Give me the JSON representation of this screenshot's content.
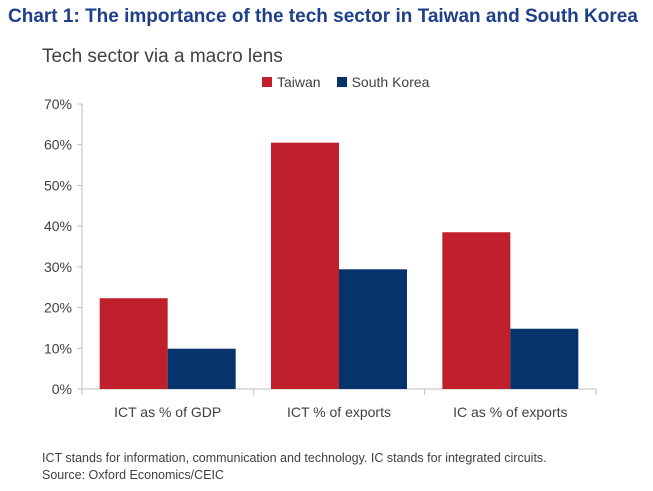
{
  "heading": "Chart 1: The importance of the tech sector in Taiwan and South Korea",
  "footnote": "ICT stands for information, communication and technology. IC stands for integrated circuits.",
  "source": "Source: Oxford Economics/CEIC",
  "colors": {
    "taiwan": "#c0202b",
    "south_korea": "#06336b",
    "heading": "#1f3f8a"
  },
  "chart_data": {
    "type": "bar",
    "title": "Tech sector via a macro lens",
    "categories": [
      "ICT as % of GDP",
      "ICT % of exports",
      "IC as % of exports"
    ],
    "series": [
      {
        "name": "Taiwan",
        "color": "#c0202b",
        "values": [
          22.3,
          60.5,
          38.5
        ]
      },
      {
        "name": "South Korea",
        "color": "#06336b",
        "values": [
          9.9,
          29.4,
          14.8
        ]
      }
    ],
    "ylim": [
      0,
      70
    ],
    "yticks": [
      0,
      10,
      20,
      30,
      40,
      50,
      60,
      70
    ],
    "ytick_labels": [
      "0%",
      "10%",
      "20%",
      "30%",
      "40%",
      "50%",
      "60%",
      "70%"
    ],
    "xlabel": "",
    "ylabel": "",
    "grid": false,
    "legend_position": "top"
  }
}
